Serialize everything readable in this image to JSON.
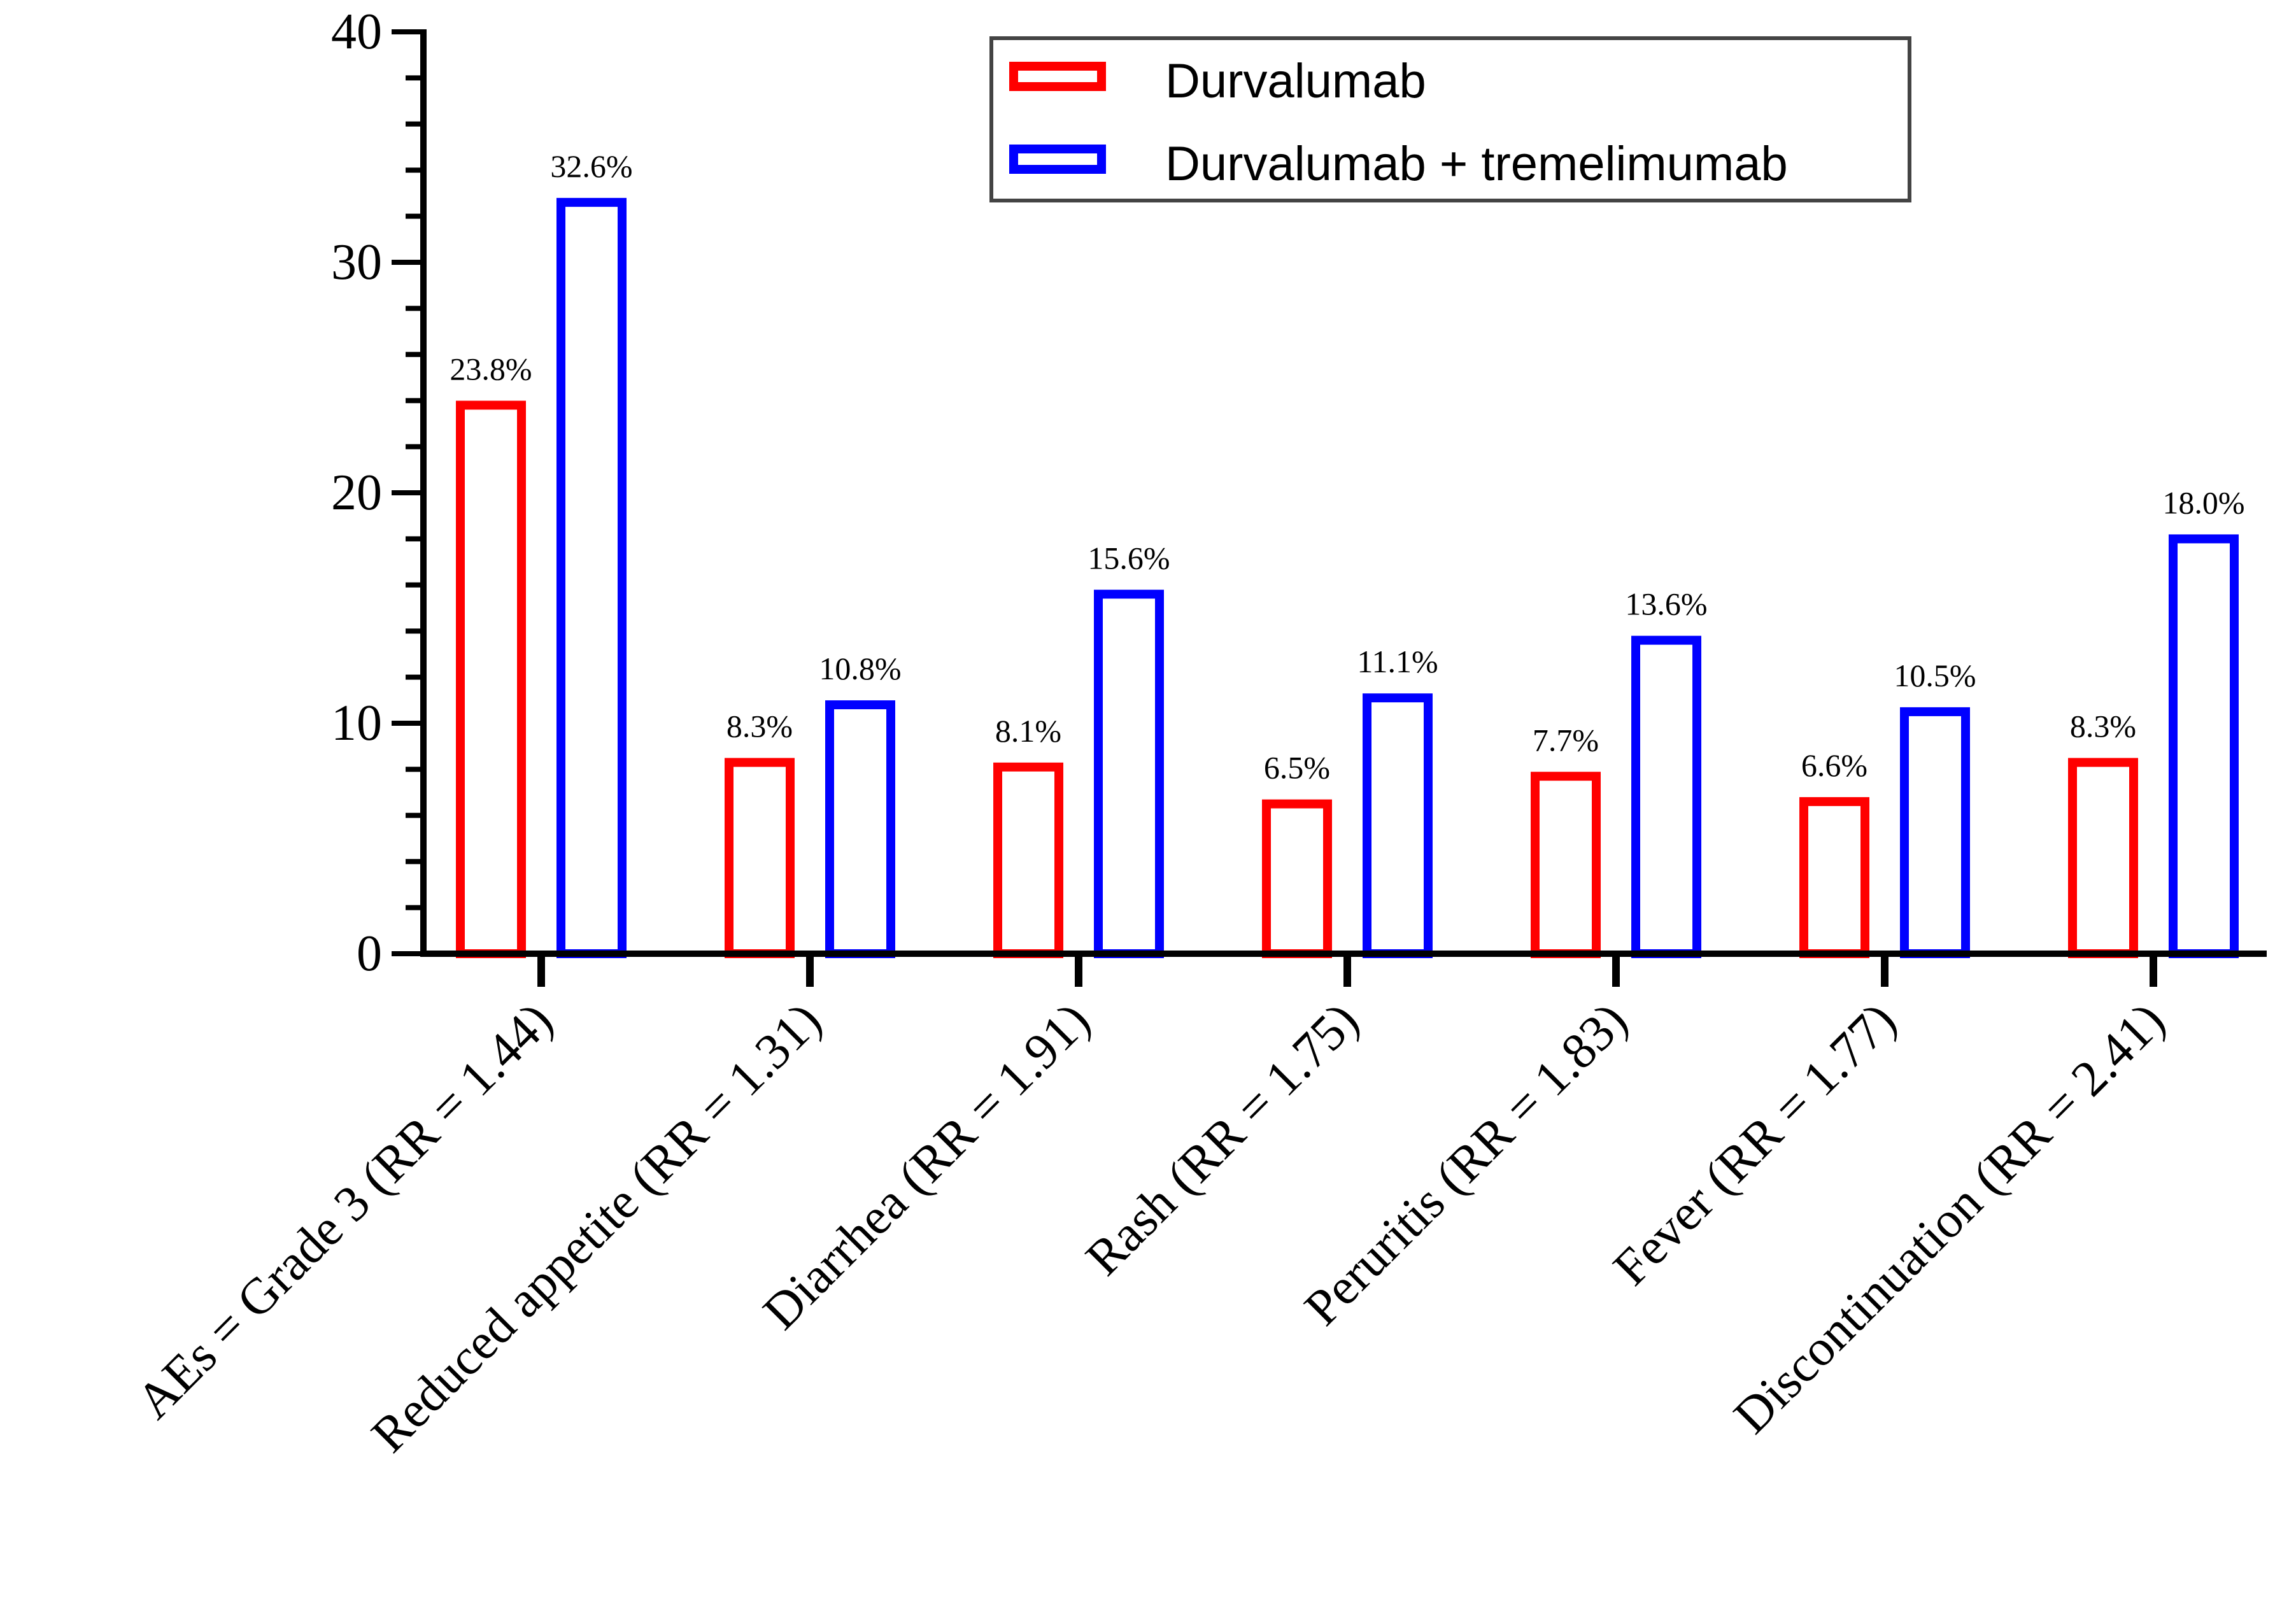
{
  "chart_data": {
    "type": "bar",
    "title": "",
    "xlabel": "",
    "ylabel": "",
    "ylim": [
      0,
      40
    ],
    "yticks": [
      0,
      10,
      20,
      30,
      40
    ],
    "grid": false,
    "legend_position": "top-right",
    "categories": [
      "AEs = Grade 3 (RR = 1.44)",
      "Reduced appetite (RR = 1.31)",
      "Diarrhea (RR = 1.91)",
      "Rash (RR = 1.75)",
      "Peruritis (RR = 1.83)",
      "Fever (RR = 1.77)",
      "Discontinuation (RR = 2.41)"
    ],
    "series": [
      {
        "name": "Durvalumab",
        "color": "#ff0000",
        "values": [
          23.8,
          8.3,
          8.1,
          6.5,
          7.7,
          6.6,
          8.3
        ],
        "labels": [
          "23.8%",
          "8.3%",
          "8.1%",
          "6.5%",
          "7.7%",
          "6.6%",
          "8.3%"
        ]
      },
      {
        "name": "Durvalumab + tremelimumab",
        "color": "#0000ff",
        "values": [
          32.6,
          10.8,
          15.6,
          11.1,
          13.6,
          10.5,
          18.0
        ],
        "labels": [
          "32.6%",
          "10.8%",
          "15.6%",
          "11.1%",
          "13.6%",
          "10.5%",
          "18.0%"
        ]
      }
    ]
  }
}
